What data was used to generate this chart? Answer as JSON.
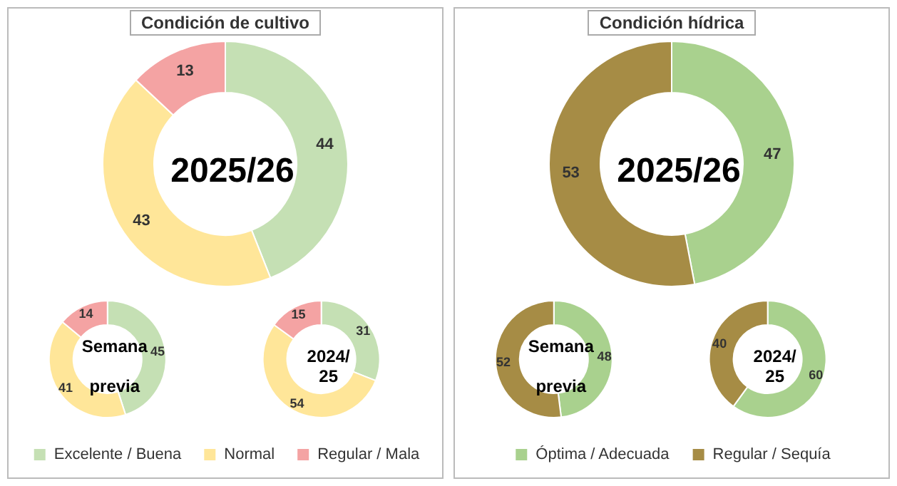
{
  "chart_data": [
    {
      "type": "donut",
      "title": "Condición de cultivo",
      "categories": [
        "Excelente / Buena",
        "Normal",
        "Regular / Mala"
      ],
      "colors": [
        "#c5e0b4",
        "#ffe699",
        "#f4a3a3"
      ],
      "data_labels": true,
      "legend": "bottom",
      "series": [
        {
          "name": "2025/26",
          "values": [
            44,
            43,
            13
          ]
        },
        {
          "name": "Semana previa",
          "values": [
            45,
            41,
            14
          ]
        },
        {
          "name": "2024/25",
          "values": [
            31,
            54,
            15
          ]
        }
      ]
    },
    {
      "type": "donut",
      "title": "Condición hídrica",
      "categories": [
        "Óptima / Adecuada",
        "Regular / Sequía"
      ],
      "colors": [
        "#a9d18e",
        "#a68c45"
      ],
      "data_labels": true,
      "legend": "bottom",
      "series": [
        {
          "name": "2025/26",
          "values": [
            47,
            53
          ]
        },
        {
          "name": "Semana previa",
          "values": [
            48,
            52
          ]
        },
        {
          "name": "2024/25",
          "values": [
            60,
            40
          ]
        }
      ]
    }
  ]
}
